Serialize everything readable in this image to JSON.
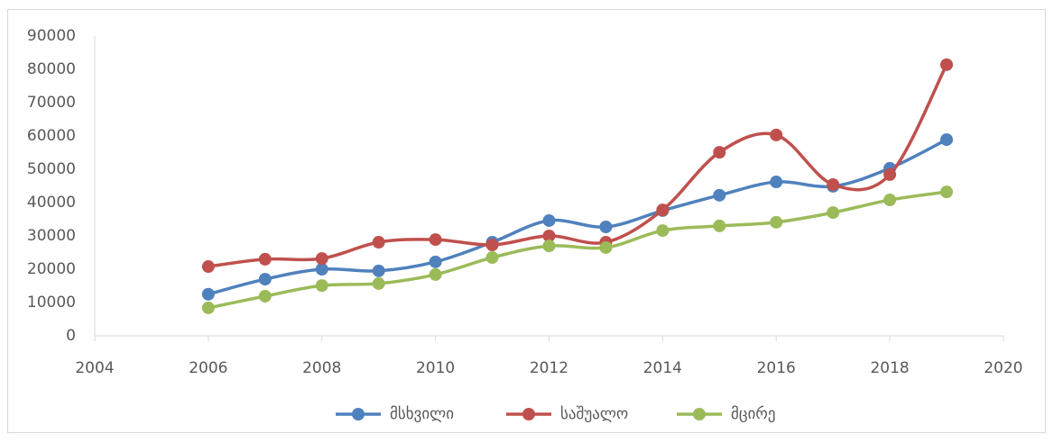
{
  "chart_data": {
    "type": "line",
    "x": [
      2006,
      2007,
      2008,
      2009,
      2010,
      2011,
      2012,
      2013,
      2014,
      2015,
      2016,
      2017,
      2018,
      2019
    ],
    "series": [
      {
        "name": "მსხვილი",
        "color": "#4f81bd",
        "values": [
          12500,
          17000,
          20000,
          19500,
          22200,
          28100,
          34600,
          32700,
          37600,
          42200,
          46200,
          44900,
          50300,
          58900
        ]
      },
      {
        "name": "საშუალო",
        "color": "#c0504d",
        "values": [
          20800,
          23000,
          23200,
          28100,
          28900,
          27300,
          30000,
          28100,
          37800,
          55100,
          60300,
          45400,
          48400,
          81400
        ]
      },
      {
        "name": "მცირე",
        "color": "#9bbb59",
        "values": [
          8400,
          11900,
          15100,
          15700,
          18400,
          23500,
          27000,
          26500,
          31600,
          33000,
          34100,
          37000,
          40800,
          43200
        ]
      }
    ],
    "xlim": [
      2004,
      2020
    ],
    "xticks": [
      2004,
      2006,
      2008,
      2010,
      2012,
      2014,
      2016,
      2018,
      2020
    ],
    "ylim": [
      0,
      90000
    ],
    "yticks": [
      0,
      10000,
      20000,
      30000,
      40000,
      50000,
      60000,
      70000,
      80000,
      90000
    ],
    "smooth": true,
    "legend": "bottom"
  }
}
